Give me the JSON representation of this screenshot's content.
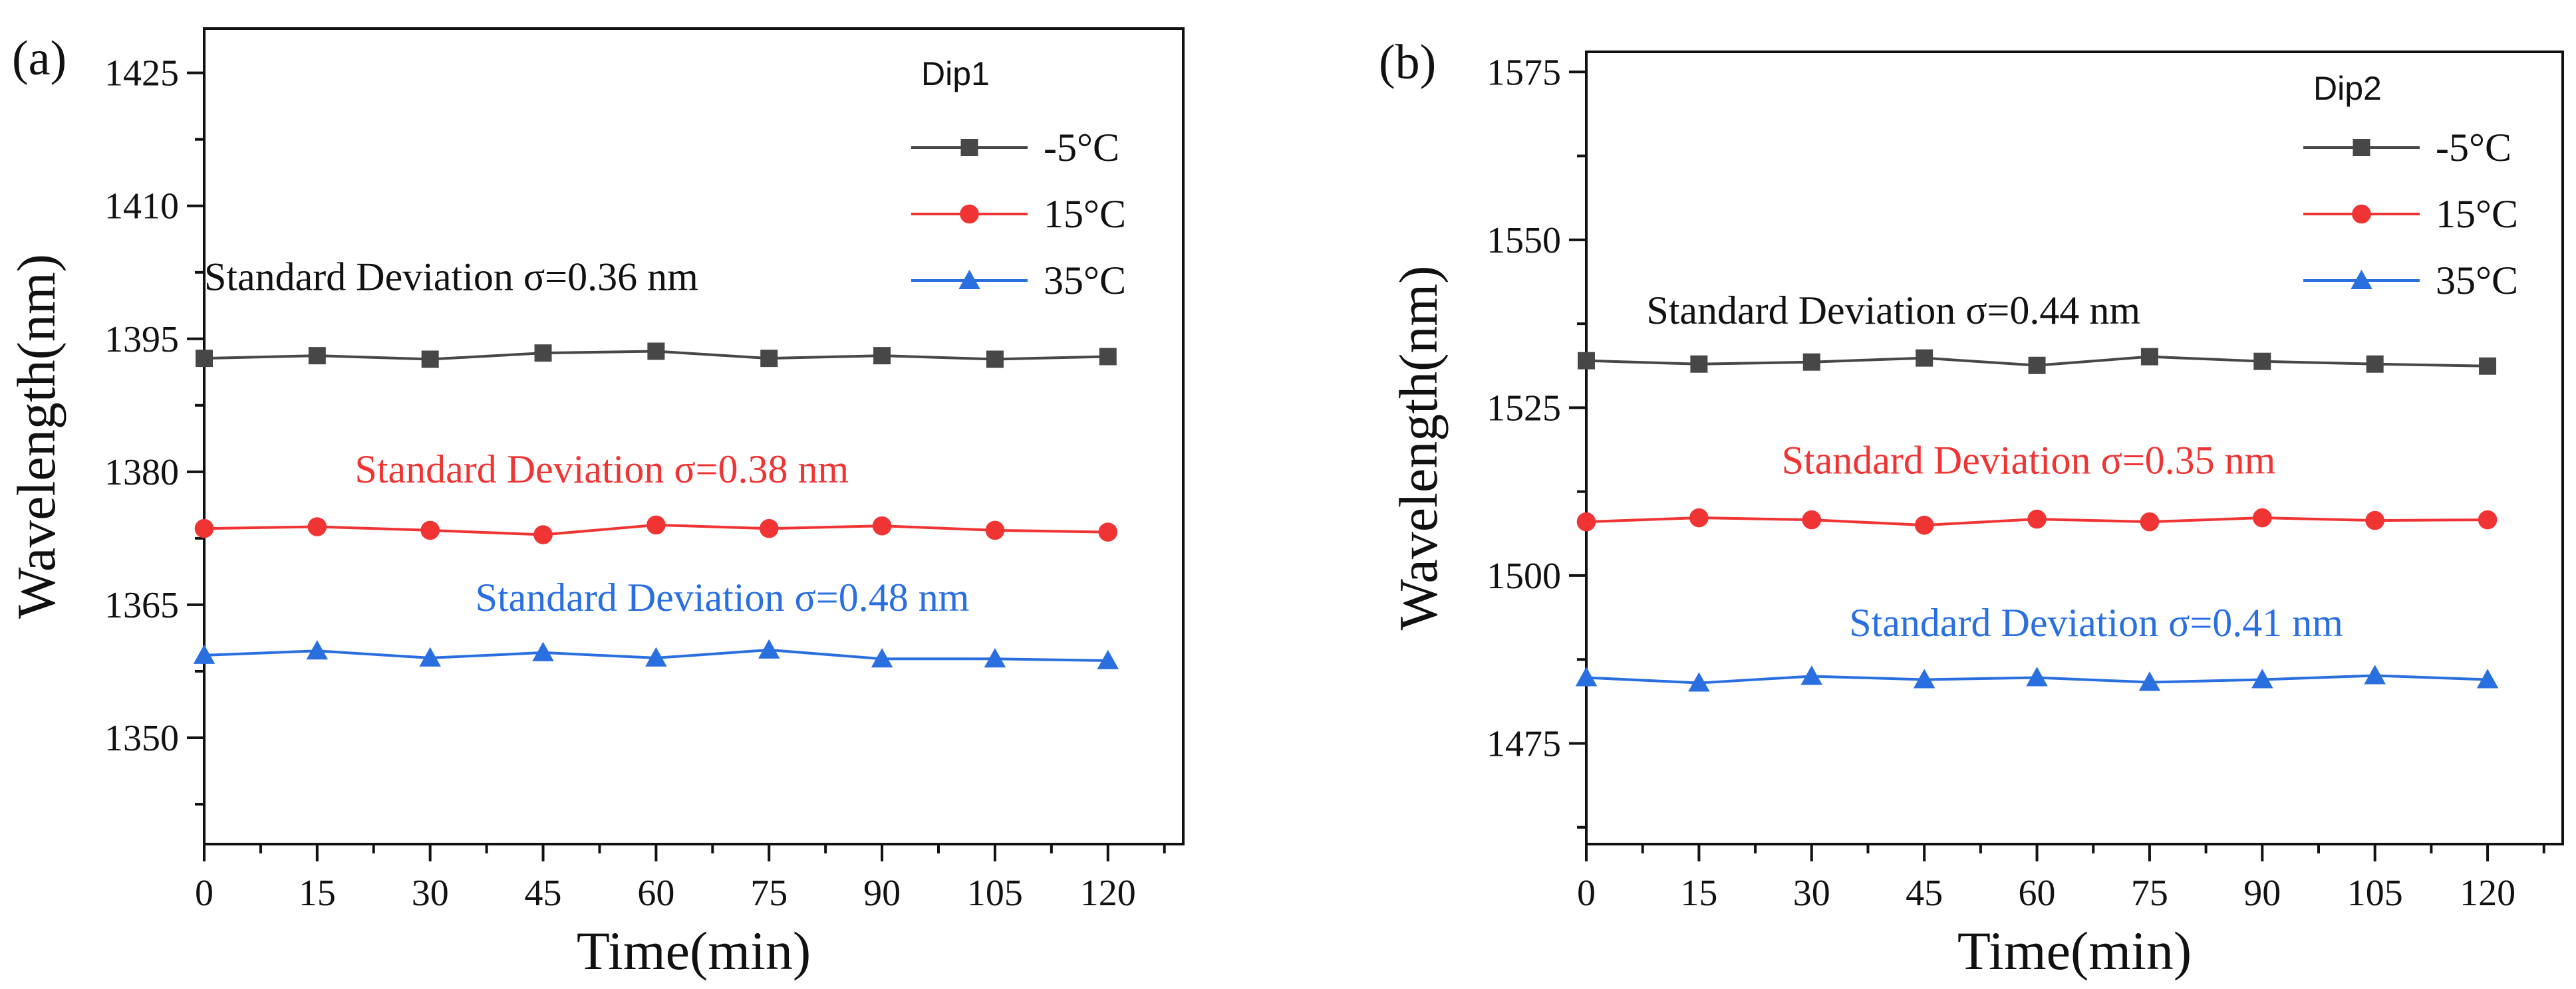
{
  "chart_data": [
    {
      "type": "line",
      "panel_label": "(a)",
      "legend_title": "Dip1",
      "xlabel": "Time(min)",
      "ylabel": "Wavelength(nm)",
      "x": [
        0,
        15,
        30,
        45,
        60,
        75,
        90,
        105,
        120
      ],
      "xlim": [
        0,
        130
      ],
      "ylim": [
        1338,
        1430
      ],
      "xticks": [
        0,
        15,
        30,
        45,
        60,
        75,
        90,
        105,
        120
      ],
      "yticks": [
        1350,
        1365,
        1380,
        1395,
        1410,
        1425
      ],
      "legend_position": "top-right",
      "series": [
        {
          "name": "-5°C",
          "color": "#474747",
          "marker": "square",
          "values": [
            1392.8,
            1393.1,
            1392.7,
            1393.4,
            1393.6,
            1392.8,
            1393.1,
            1392.7,
            1393.0
          ]
        },
        {
          "name": "15°C",
          "color": "#f03434",
          "marker": "circle",
          "values": [
            1373.6,
            1373.8,
            1373.4,
            1372.9,
            1374.0,
            1373.6,
            1373.9,
            1373.4,
            1373.2
          ]
        },
        {
          "name": "35°C",
          "color": "#2a6fe0",
          "marker": "triangle",
          "values": [
            1359.3,
            1359.8,
            1359.0,
            1359.6,
            1359.0,
            1359.9,
            1358.9,
            1358.9,
            1358.7
          ]
        }
      ],
      "annotations": [
        {
          "text": "Standard Deviation σ=0.36 nm",
          "color": "#111111",
          "x": 0,
          "y": 1400.5
        },
        {
          "text": "Standard Deviation σ=0.38 nm",
          "color": "#f03434",
          "x": 20,
          "y": 1378.8
        },
        {
          "text": "Standard Deviation σ=0.48 nm",
          "color": "#2a6fe0",
          "x": 36,
          "y": 1364.3
        }
      ]
    },
    {
      "type": "line",
      "panel_label": "(b)",
      "legend_title": "Dip2",
      "xlabel": "Time(min)",
      "ylabel": "Wavelength(nm)",
      "x": [
        0,
        15,
        30,
        45,
        60,
        75,
        90,
        105,
        120
      ],
      "xlim": [
        0,
        130
      ],
      "ylim": [
        1460,
        1578
      ],
      "xticks": [
        0,
        15,
        30,
        45,
        60,
        75,
        90,
        105,
        120
      ],
      "yticks": [
        1475,
        1500,
        1525,
        1550,
        1575
      ],
      "legend_position": "top-right",
      "series": [
        {
          "name": "-5°C",
          "color": "#474747",
          "marker": "square",
          "values": [
            1532.0,
            1531.5,
            1531.8,
            1532.4,
            1531.3,
            1532.6,
            1531.9,
            1531.5,
            1531.2
          ]
        },
        {
          "name": "15°C",
          "color": "#f03434",
          "marker": "circle",
          "values": [
            1508.0,
            1508.6,
            1508.3,
            1507.5,
            1508.4,
            1508.0,
            1508.6,
            1508.2,
            1508.3
          ]
        },
        {
          "name": "35°C",
          "color": "#2a6fe0",
          "marker": "triangle",
          "values": [
            1484.8,
            1484.0,
            1485.0,
            1484.5,
            1484.8,
            1484.1,
            1484.5,
            1485.1,
            1484.5
          ]
        }
      ],
      "annotations": [
        {
          "text": "Standard Deviation σ=0.44 nm",
          "color": "#111111",
          "x": 8,
          "y": 1537.5
        },
        {
          "text": "Standard Deviation σ=0.35 nm",
          "color": "#f03434",
          "x": 26,
          "y": 1515.2
        },
        {
          "text": "Standard Deviation σ=0.41 nm",
          "color": "#2a6fe0",
          "x": 35,
          "y": 1491.0
        }
      ]
    }
  ]
}
